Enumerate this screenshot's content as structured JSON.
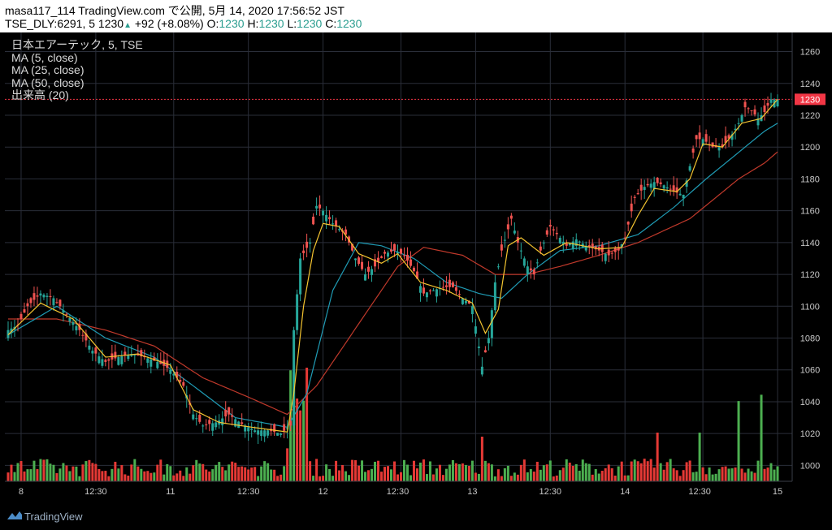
{
  "header": {
    "line1": "masa117_114 TradingView.com で公開, 5月 14, 2020 17:56:52 JST",
    "symbol": "TSE_DLY:6291, 5 1230",
    "change_arrow": "▲",
    "change": "+92 (+8.08%)",
    "o_label": "O:",
    "o_value": "1230",
    "h_label": "H:",
    "h_value": "1230",
    "l_label": "L:",
    "l_value": "1230",
    "c_label": "C:",
    "c_value": "1230"
  },
  "legend": {
    "title": "日本エアーテック, 5, TSE",
    "ma5": "MA (5, close)",
    "ma25": "MA (25, close)",
    "ma50": "MA (50, close)",
    "volume": "出来高 (20)"
  },
  "footer": {
    "brand": "TradingView"
  },
  "colors": {
    "background": "#000000",
    "up": "#26a69a",
    "down": "#ef5350",
    "ma5": "#f4c430",
    "ma25": "#1f9bb4",
    "ma50": "#c0392b",
    "vol_up": "#4caf50",
    "vol_down": "#e53935",
    "grid": "#2a2e39",
    "price_label": "#f23645"
  },
  "chart_data": {
    "type": "candlestick",
    "x_tick_labels": [
      "8",
      "12:30",
      "11",
      "12:30",
      "12",
      "12:30",
      "13",
      "12:30",
      "14",
      "12:30",
      "15"
    ],
    "y_tick_labels": [
      1000,
      1020,
      1040,
      1060,
      1080,
      1100,
      1120,
      1140,
      1160,
      1180,
      1200,
      1220,
      1240,
      1260
    ],
    "ylim": [
      990,
      1272
    ],
    "last_price": 1230,
    "price_anchors": [
      [
        0,
        1085
      ],
      [
        3,
        1088
      ],
      [
        6,
        1100
      ],
      [
        10,
        1108
      ],
      [
        14,
        1105
      ],
      [
        18,
        1095
      ],
      [
        22,
        1085
      ],
      [
        26,
        1072
      ],
      [
        30,
        1065
      ],
      [
        34,
        1068
      ],
      [
        38,
        1070
      ],
      [
        42,
        1068
      ],
      [
        46,
        1065
      ],
      [
        50,
        1060
      ],
      [
        54,
        1050
      ],
      [
        57,
        1032
      ],
      [
        60,
        1025
      ],
      [
        64,
        1027
      ],
      [
        68,
        1032
      ],
      [
        72,
        1026
      ],
      [
        76,
        1022
      ],
      [
        80,
        1022
      ],
      [
        84,
        1020
      ],
      [
        87,
        1025
      ],
      [
        88,
        1085
      ],
      [
        90,
        1130
      ],
      [
        93,
        1140
      ],
      [
        95,
        1163
      ],
      [
        97,
        1160
      ],
      [
        100,
        1152
      ],
      [
        104,
        1145
      ],
      [
        107,
        1130
      ],
      [
        110,
        1120
      ],
      [
        113,
        1125
      ],
      [
        116,
        1133
      ],
      [
        119,
        1135
      ],
      [
        122,
        1132
      ],
      [
        125,
        1122
      ],
      [
        128,
        1108
      ],
      [
        131,
        1110
      ],
      [
        134,
        1112
      ],
      [
        137,
        1112
      ],
      [
        140,
        1105
      ],
      [
        143,
        1100
      ],
      [
        146,
        1062
      ],
      [
        148,
        1080
      ],
      [
        150,
        1115
      ],
      [
        152,
        1135
      ],
      [
        155,
        1155
      ],
      [
        157,
        1140
      ],
      [
        160,
        1125
      ],
      [
        162,
        1120
      ],
      [
        164,
        1135
      ],
      [
        167,
        1150
      ],
      [
        170,
        1143
      ],
      [
        172,
        1138
      ],
      [
        175,
        1142
      ],
      [
        178,
        1138
      ],
      [
        182,
        1135
      ],
      [
        185,
        1132
      ],
      [
        188,
        1135
      ],
      [
        190,
        1143
      ],
      [
        193,
        1168
      ],
      [
        196,
        1175
      ],
      [
        199,
        1178
      ],
      [
        202,
        1176
      ],
      [
        205,
        1172
      ],
      [
        208,
        1170
      ],
      [
        210,
        1188
      ],
      [
        212,
        1205
      ],
      [
        214,
        1205
      ],
      [
        217,
        1200
      ],
      [
        220,
        1200
      ],
      [
        223,
        1208
      ],
      [
        225,
        1215
      ],
      [
        227,
        1225
      ],
      [
        229,
        1223
      ],
      [
        231,
        1218
      ],
      [
        233,
        1222
      ],
      [
        235,
        1230
      ],
      [
        237,
        1230
      ]
    ],
    "ma5_anchors": [
      [
        0,
        1082
      ],
      [
        10,
        1102
      ],
      [
        20,
        1092
      ],
      [
        30,
        1068
      ],
      [
        40,
        1070
      ],
      [
        50,
        1063
      ],
      [
        57,
        1035
      ],
      [
        65,
        1027
      ],
      [
        75,
        1024
      ],
      [
        86,
        1021
      ],
      [
        88,
        1045
      ],
      [
        91,
        1100
      ],
      [
        94,
        1135
      ],
      [
        97,
        1152
      ],
      [
        102,
        1150
      ],
      [
        108,
        1133
      ],
      [
        115,
        1127
      ],
      [
        120,
        1133
      ],
      [
        127,
        1115
      ],
      [
        135,
        1110
      ],
      [
        143,
        1102
      ],
      [
        147,
        1083
      ],
      [
        151,
        1098
      ],
      [
        154,
        1138
      ],
      [
        158,
        1143
      ],
      [
        165,
        1132
      ],
      [
        172,
        1140
      ],
      [
        182,
        1136
      ],
      [
        189,
        1137
      ],
      [
        194,
        1157
      ],
      [
        199,
        1174
      ],
      [
        206,
        1172
      ],
      [
        210,
        1180
      ],
      [
        214,
        1202
      ],
      [
        220,
        1200
      ],
      [
        226,
        1215
      ],
      [
        232,
        1218
      ],
      [
        237,
        1230
      ]
    ],
    "ma25_anchors": [
      [
        0,
        1082
      ],
      [
        15,
        1100
      ],
      [
        30,
        1080
      ],
      [
        45,
        1068
      ],
      [
        57,
        1050
      ],
      [
        70,
        1030
      ],
      [
        86,
        1024
      ],
      [
        92,
        1045
      ],
      [
        100,
        1110
      ],
      [
        108,
        1140
      ],
      [
        115,
        1138
      ],
      [
        125,
        1130
      ],
      [
        135,
        1115
      ],
      [
        145,
        1108
      ],
      [
        152,
        1105
      ],
      [
        160,
        1120
      ],
      [
        170,
        1135
      ],
      [
        182,
        1138
      ],
      [
        194,
        1145
      ],
      [
        205,
        1162
      ],
      [
        215,
        1180
      ],
      [
        227,
        1200
      ],
      [
        233,
        1210
      ],
      [
        237,
        1215
      ]
    ],
    "ma50_anchors": [
      [
        0,
        1092
      ],
      [
        15,
        1092
      ],
      [
        30,
        1085
      ],
      [
        45,
        1075
      ],
      [
        60,
        1055
      ],
      [
        75,
        1042
      ],
      [
        86,
        1032
      ],
      [
        95,
        1050
      ],
      [
        110,
        1095
      ],
      [
        120,
        1125
      ],
      [
        128,
        1137
      ],
      [
        140,
        1132
      ],
      [
        150,
        1120
      ],
      [
        160,
        1120
      ],
      [
        170,
        1125
      ],
      [
        182,
        1132
      ],
      [
        194,
        1140
      ],
      [
        210,
        1155
      ],
      [
        225,
        1180
      ],
      [
        233,
        1190
      ],
      [
        237,
        1197
      ]
    ]
  }
}
